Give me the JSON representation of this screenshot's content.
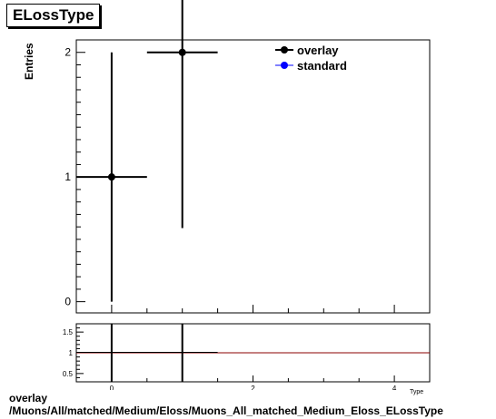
{
  "title": "ELossType",
  "footer": {
    "line1": "overlay",
    "line2": "/Muons/All/matched/Medium/Eloss/Muons_All_matched_Medium_Eloss_ELossType"
  },
  "chart_data": [
    {
      "type": "scatter",
      "panel": "main",
      "title": "ELossType",
      "xlabel": "Type",
      "ylabel": "Entries",
      "xlim": [
        -0.5,
        4.5
      ],
      "ylim": [
        -0.09,
        2.1
      ],
      "y_ticks": [
        0,
        1,
        2
      ],
      "grid": false,
      "legend_position": "top-right",
      "series": [
        {
          "name": "overlay",
          "color": "#000000",
          "points": [
            {
              "x": 0,
              "y": 1,
              "xerr": 0.5,
              "yerr": 1
            },
            {
              "x": 1,
              "y": 2,
              "xerr": 0.5,
              "yerr": 1.41
            }
          ]
        },
        {
          "name": "standard",
          "color": "#0000ff",
          "points": []
        }
      ]
    },
    {
      "type": "line",
      "panel": "ratio",
      "xlim": [
        -0.5,
        4.5
      ],
      "ylim": [
        0.3,
        1.7
      ],
      "x_ticks": [
        0,
        2,
        4
      ],
      "y_ticks": [
        0.5,
        1,
        1.5
      ],
      "y_tick_labels": [
        "0.5",
        "1",
        "1.5"
      ],
      "reference_line": {
        "y": 1,
        "color": "#8b0000"
      },
      "segments": [
        {
          "x_from": -0.5,
          "x_to": 1.5,
          "y": 1,
          "color": "#000000"
        }
      ],
      "error_bars": [
        {
          "x": 0,
          "y": 1
        },
        {
          "x": 1,
          "y": 1
        }
      ]
    }
  ]
}
